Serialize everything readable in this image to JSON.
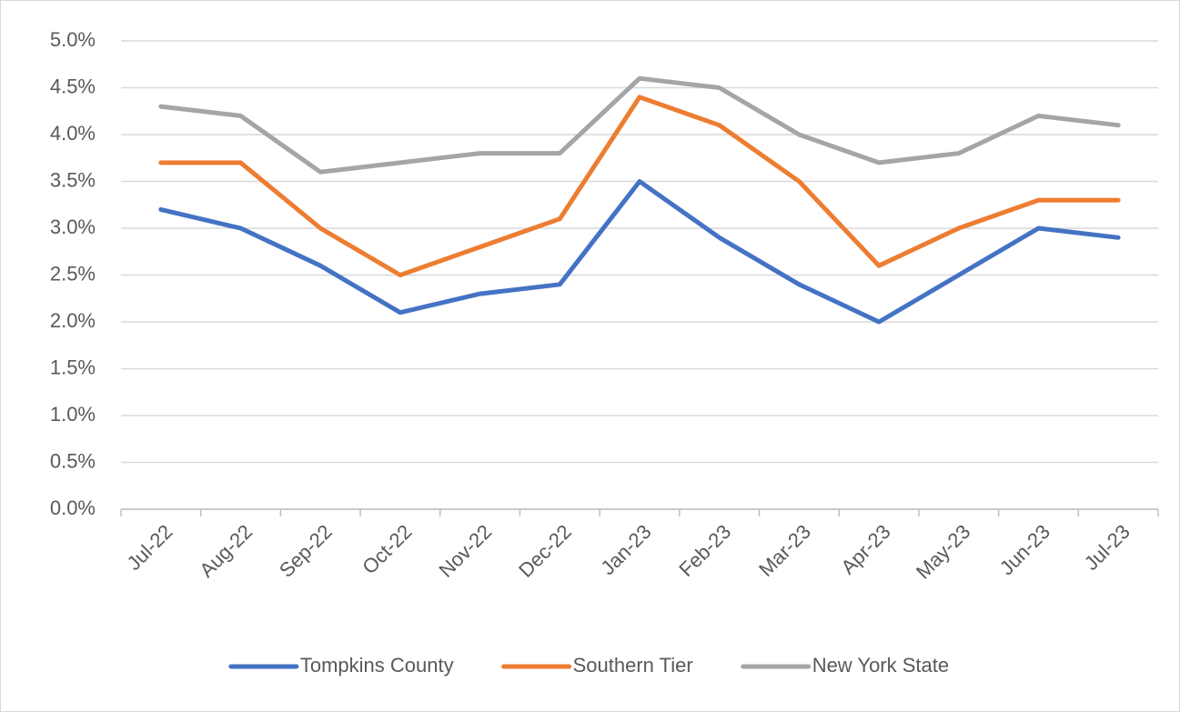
{
  "chart_data": {
    "type": "line",
    "categories": [
      "Jul-22",
      "Aug-22",
      "Sep-22",
      "Oct-22",
      "Nov-22",
      "Dec-22",
      "Jan-23",
      "Feb-23",
      "Mar-23",
      "Apr-23",
      "May-23",
      "Jun-23",
      "Jul-23"
    ],
    "series": [
      {
        "name": "Tompkins County",
        "color": "#4472c4",
        "values": [
          3.2,
          3.0,
          2.6,
          2.1,
          2.3,
          2.4,
          3.5,
          2.9,
          2.4,
          2.0,
          2.5,
          3.0,
          2.9
        ]
      },
      {
        "name": "Southern Tier",
        "color": "#ed7d31",
        "values": [
          3.7,
          3.7,
          3.0,
          2.5,
          2.8,
          3.1,
          4.4,
          4.1,
          3.5,
          2.6,
          3.0,
          3.3,
          3.3
        ]
      },
      {
        "name": "New York State",
        "color": "#a5a5a5",
        "values": [
          4.3,
          4.2,
          3.6,
          3.7,
          3.8,
          3.8,
          4.6,
          4.5,
          4.0,
          3.7,
          3.8,
          4.2,
          4.1
        ]
      }
    ],
    "ylim": [
      0,
      5
    ],
    "yticks": [
      {
        "value": 0,
        "label": "0.0%"
      },
      {
        "value": 0.5,
        "label": "0.5%"
      },
      {
        "value": 1,
        "label": "1.0%"
      },
      {
        "value": 1.5,
        "label": "1.5%"
      },
      {
        "value": 2,
        "label": "2.0%"
      },
      {
        "value": 2.5,
        "label": "2.5%"
      },
      {
        "value": 3,
        "label": "3.0%"
      },
      {
        "value": 3.5,
        "label": "3.5%"
      },
      {
        "value": 4,
        "label": "4.0%"
      },
      {
        "value": 4.5,
        "label": "4.5%"
      },
      {
        "value": 5,
        "label": "5.0%"
      }
    ],
    "grid": true,
    "legend": "bottom"
  }
}
